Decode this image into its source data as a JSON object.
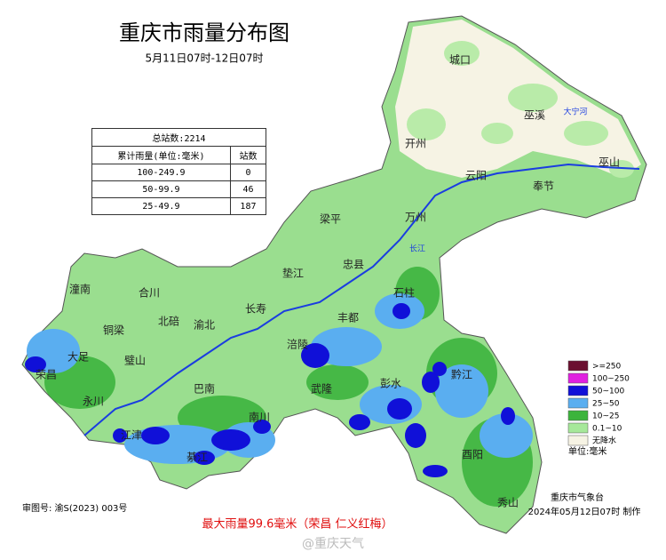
{
  "header": {
    "title": "重庆市雨量分布图",
    "subtitle": "5月11日07时-12日07时"
  },
  "table": {
    "title": "总站数:2214",
    "columns": [
      "累计雨量(单位:毫米)",
      "站数"
    ],
    "rows": [
      [
        "100-249.9",
        "0"
      ],
      [
        "50-99.9",
        "46"
      ],
      [
        "25-49.9",
        "187"
      ]
    ]
  },
  "legend": {
    "items": [
      {
        "label": ">=250",
        "color": "#6b1030"
      },
      {
        "label": "100~250",
        "color": "#e020e0"
      },
      {
        "label": "50~100",
        "color": "#1010d8"
      },
      {
        "label": "25~50",
        "color": "#5aaef0"
      },
      {
        "label": "10~25",
        "color": "#3cb43c"
      },
      {
        "label": "0.1~10",
        "color": "#a6e89a"
      },
      {
        "label": "无降水",
        "color": "#f6f3e4"
      }
    ],
    "unit": "单位:毫米"
  },
  "districts": [
    "城口",
    "巫溪",
    "巫山",
    "奉节",
    "开州",
    "云阳",
    "万州",
    "梁平",
    "忠县",
    "垫江",
    "石柱",
    "丰都",
    "长寿",
    "涪陵",
    "武隆",
    "彭水",
    "黔江",
    "酉阳",
    "秀山",
    "潼南",
    "合川",
    "铜梁",
    "大足",
    "荣昌",
    "璧山",
    "北碚",
    "渝北",
    "永川",
    "江津",
    "巴南",
    "南川",
    "綦江"
  ],
  "rivers": [
    "长江",
    "大宁河"
  ],
  "footer": {
    "approval": "审图号: 渝S(2023) 003号",
    "max_rain": "最大雨量99.6毫米（荣昌 仁义红梅）",
    "org": "重庆市气象台",
    "time": "2024年05月12日07时 制作",
    "watermark": "@重庆天气"
  }
}
